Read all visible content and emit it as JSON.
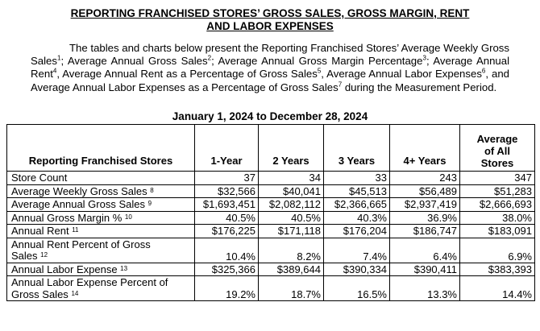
{
  "title": {
    "line1": "REPORTING FRANCHISED STORES’ GROSS SALES, GROSS MARGIN, RENT",
    "line2": "AND LABOR EXPENSES"
  },
  "intro": {
    "p1": "The tables and charts below present the Reporting Franchised Stores’ Average Weekly Gross Sales",
    "s1": "1",
    "p2": "; Average Annual Gross Sales",
    "s2": "2",
    "p3": "; Average Annual Gross Margin Percentage",
    "s3": "3",
    "p4": "; Average Annual Rent",
    "s4": "4",
    "p5": ", Average Annual Rent as a Percentage of Gross Sales",
    "s5": "5",
    "p6": ", Average Annual Labor Expenses",
    "s6": "6",
    "p7": ", and Average Annual Labor Expenses as a Percentage of Gross Sales",
    "s7": "7",
    "p8": " during the Measurement Period."
  },
  "period": "January 1, 2024 to December 28, 2024",
  "table": {
    "headers": {
      "stores": "Reporting Franchised Stores",
      "y1": "1-Year",
      "y2": "2 Years",
      "y3": "3 Years",
      "y4": "4+ Years",
      "avg_line1": "Average",
      "avg_line2": "of All",
      "avg_line3": "Stores"
    },
    "rows": [
      {
        "label": "Store Count",
        "note": "",
        "values": [
          "37",
          "34",
          "33",
          "243",
          "347"
        ]
      },
      {
        "label": "Average Weekly Gross Sales",
        "note": "8",
        "values": [
          "$32,566",
          "$40,041",
          "$45,513",
          "$56,489",
          "$51,283"
        ]
      },
      {
        "label": "Average Annual Gross Sales",
        "note": "9",
        "values": [
          "$1,693,451",
          "$2,082,112",
          "$2,366,665",
          "$2,937,419",
          "$2,666,693"
        ]
      },
      {
        "label": "Annual Gross Margin %",
        "note": "10",
        "values": [
          "40.5%",
          "40.5%",
          "40.3%",
          "36.9%",
          "38.0%"
        ]
      },
      {
        "label": "Annual Rent",
        "note": "11",
        "values": [
          "$176,225",
          "$171,118",
          "$176,204",
          "$186,747",
          "$183,091"
        ]
      },
      {
        "label_line1": "Annual Rent Percent of Gross",
        "label_line2": "Sales",
        "note": "12",
        "values": [
          "10.4%",
          "8.2%",
          "7.4%",
          "6.4%",
          "6.9%"
        ]
      },
      {
        "label": "Annual Labor Expense",
        "note": "13",
        "values": [
          "$325,366",
          "$389,644",
          "$390,334",
          "$390,411",
          "$383,393"
        ]
      },
      {
        "label_line1": "Annual Labor Expense Percent of",
        "label_line2": "Gross Sales",
        "note": "14",
        "values": [
          "19.2%",
          "18.7%",
          "16.5%",
          "13.3%",
          "14.4%"
        ]
      }
    ]
  }
}
